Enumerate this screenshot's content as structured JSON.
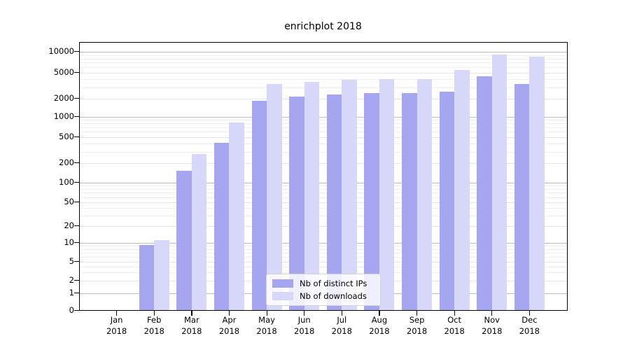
{
  "figure": {
    "title": "enrichplot 2018"
  },
  "chart_data": {
    "type": "bar",
    "title": "enrichplot 2018",
    "categories": [
      "Jan",
      "Feb",
      "Mar",
      "Apr",
      "May",
      "Jun",
      "Jul",
      "Aug",
      "Sep",
      "Oct",
      "Nov",
      "Dec"
    ],
    "category_year": "2018",
    "series": [
      {
        "name": "Nb of distinct IPs",
        "color": "#a5a5f0",
        "values": [
          0,
          9,
          150,
          400,
          1800,
          2100,
          2250,
          2350,
          2400,
          2500,
          4300,
          3300
        ]
      },
      {
        "name": "Nb of downloads",
        "color": "#d7d8f9",
        "values": [
          0,
          11,
          270,
          800,
          3300,
          3500,
          3800,
          3950,
          3950,
          5300,
          9000,
          8300
        ]
      }
    ],
    "yticks": [
      0,
      1,
      2,
      5,
      10,
      20,
      50,
      100,
      200,
      500,
      1000,
      2000,
      5000,
      10000
    ],
    "yscale": "log (symlog near zero)",
    "ylim": [
      0,
      13000
    ],
    "xlabel": "",
    "ylabel": "",
    "grid": "horizontal major and minor gridlines",
    "legend_position": "inside lower center-right"
  }
}
